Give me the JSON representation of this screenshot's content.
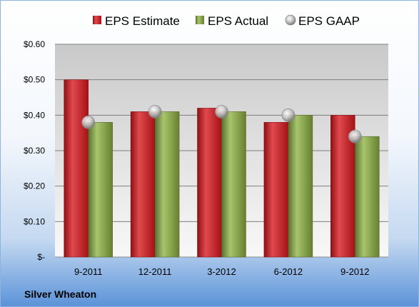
{
  "company": "Silver Wheaton",
  "chart_data": {
    "type": "bar",
    "categories": [
      "9-2011",
      "12-2011",
      "3-2012",
      "6-2012",
      "9-2012"
    ],
    "series": [
      {
        "name": "EPS Estimate",
        "kind": "bar",
        "color": "#c0161c",
        "values": [
          0.5,
          0.41,
          0.42,
          0.38,
          0.4
        ]
      },
      {
        "name": "EPS Actual",
        "kind": "bar",
        "color": "#77933c",
        "values": [
          0.38,
          0.41,
          0.41,
          0.4,
          0.34
        ]
      },
      {
        "name": "EPS GAAP",
        "kind": "marker",
        "color": "#a6a6a6",
        "values": [
          0.38,
          0.41,
          0.41,
          0.4,
          0.34
        ]
      }
    ],
    "y_ticks": [
      {
        "value": 0,
        "label": "$-"
      },
      {
        "value": 0.1,
        "label": "$0.10"
      },
      {
        "value": 0.2,
        "label": "$0.20"
      },
      {
        "value": 0.3,
        "label": "$0.30"
      },
      {
        "value": 0.4,
        "label": "$0.40"
      },
      {
        "value": 0.5,
        "label": "$0.50"
      },
      {
        "value": 0.6,
        "label": "$0.60"
      }
    ],
    "ylim": [
      0,
      0.6
    ],
    "grid": true,
    "legend_position": "top"
  }
}
